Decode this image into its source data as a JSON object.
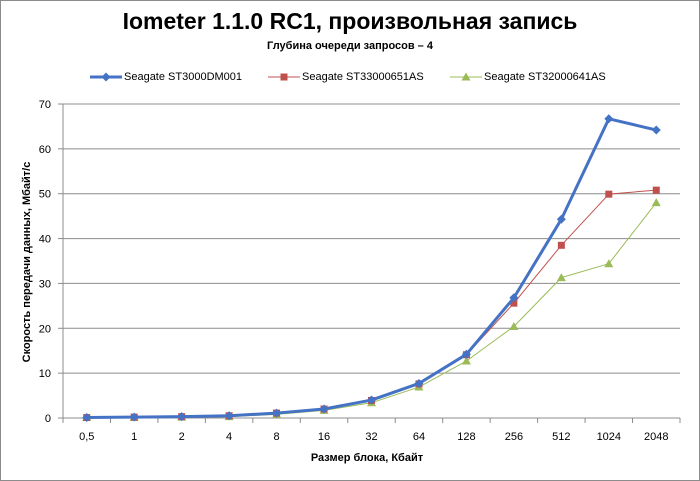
{
  "chart_data": {
    "type": "line",
    "title": "Iometer 1.1.0 RC1, произвольная запись",
    "subtitle": "Глубина очереди запросов – 4",
    "xlabel": "Размер блока, Кбайт",
    "ylabel": "Скорость передачи данных, Мбайт/с",
    "categories": [
      "0,5",
      "1",
      "2",
      "4",
      "8",
      "16",
      "32",
      "64",
      "128",
      "256",
      "512",
      "1024",
      "2048"
    ],
    "ylim": [
      0,
      70
    ],
    "yticks": [
      0,
      10,
      20,
      30,
      40,
      50,
      60,
      70
    ],
    "grid": "horizontal",
    "legend_position": "top",
    "series": [
      {
        "name": "Seagate ST3000DM001",
        "color": "#4472c4",
        "marker": "diamond",
        "values": [
          0.1,
          0.2,
          0.3,
          0.5,
          1.1,
          2.0,
          4.0,
          7.7,
          14.2,
          26.8,
          44.3,
          66.7,
          64.2
        ]
      },
      {
        "name": "Seagate ST33000651AS",
        "color": "#c0504d",
        "marker": "square",
        "values": [
          0.1,
          0.2,
          0.3,
          0.5,
          1.1,
          2.0,
          3.9,
          7.6,
          14.1,
          25.6,
          38.5,
          49.9,
          50.8
        ]
      },
      {
        "name": "Seagate ST32000641AS",
        "color": "#9bbb59",
        "marker": "triangle",
        "values": [
          0.1,
          0.1,
          0.2,
          0.3,
          0.8,
          1.7,
          3.4,
          6.9,
          12.7,
          20.4,
          31.3,
          34.4,
          48.0
        ]
      }
    ]
  }
}
